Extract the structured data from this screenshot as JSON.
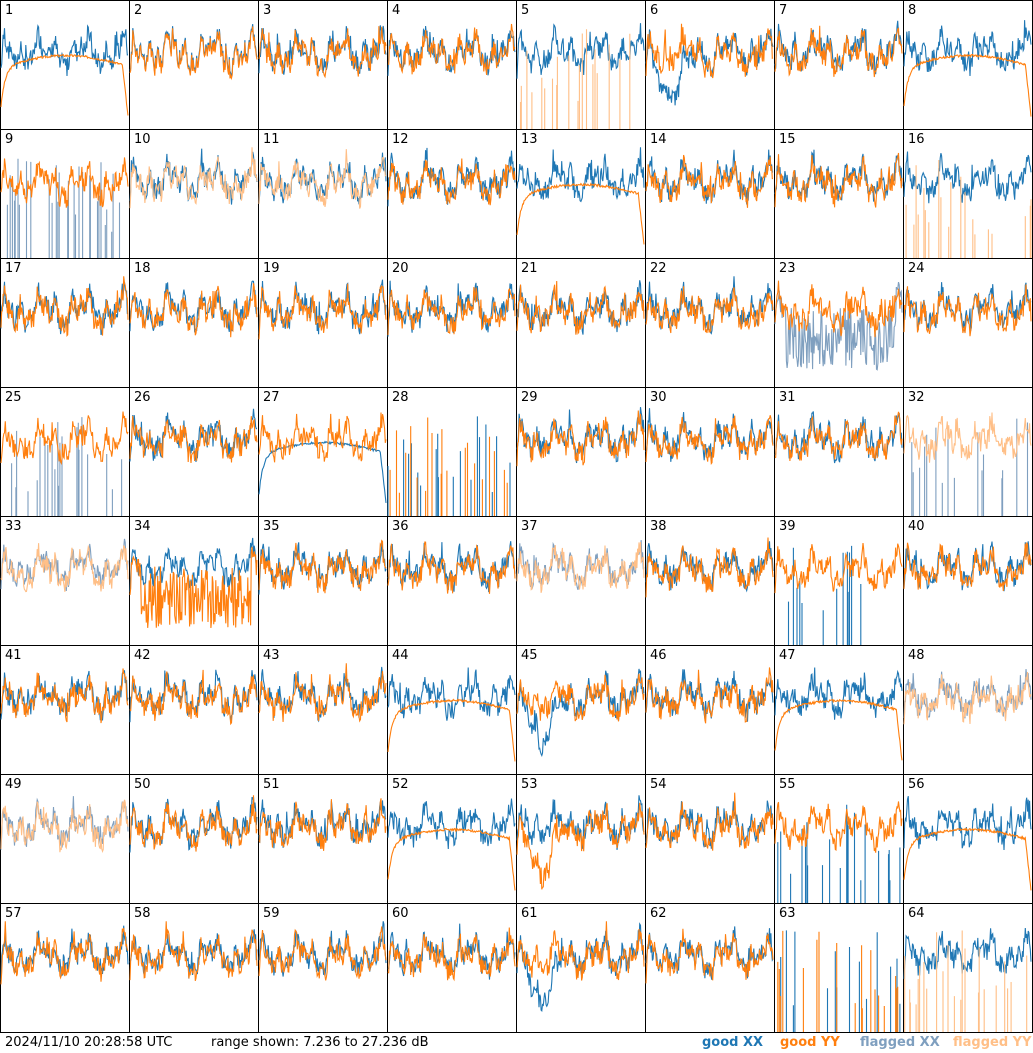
{
  "colors": {
    "good_xx": "#1f77b4",
    "good_yy": "#ff7f0e",
    "flagged_xx": "#7f9fbf",
    "flagged_yy": "#ffbf87"
  },
  "footer": {
    "timestamp": "2024/11/10 20:28:58 UTC",
    "range_text": "range shown: 7.236 to 27.236 dB"
  },
  "legend": {
    "good_xx": "good XX",
    "good_yy": "good YY",
    "flagged_xx": "flagged XX",
    "flagged_yy": "flagged YY"
  },
  "chart_data": {
    "type": "line",
    "ylim": [
      7.236,
      27.236
    ],
    "yunit": "dB",
    "grid": "8x8 small multiples",
    "panels": [
      {
        "label": "1",
        "xx": "good",
        "yy": "good",
        "yy_shape": "smooth"
      },
      {
        "label": "2",
        "xx": "good",
        "yy": "good"
      },
      {
        "label": "3",
        "xx": "good",
        "yy": "good"
      },
      {
        "label": "4",
        "xx": "good",
        "yy": "good"
      },
      {
        "label": "5",
        "xx": "good",
        "yy": "flagged",
        "yy_shape": "spikes"
      },
      {
        "label": "6",
        "xx": "good",
        "yy": "good",
        "xx_shape": "dip"
      },
      {
        "label": "7",
        "xx": "good",
        "yy": "good"
      },
      {
        "label": "8",
        "xx": "good",
        "yy": "good",
        "yy_shape": "smooth"
      },
      {
        "label": "9",
        "xx": "flagged",
        "yy": "good",
        "xx_shape": "spikes"
      },
      {
        "label": "10",
        "xx": "good",
        "yy": "flagged"
      },
      {
        "label": "11",
        "xx": "good",
        "yy": "flagged"
      },
      {
        "label": "12",
        "xx": "good",
        "yy": "good"
      },
      {
        "label": "13",
        "xx": "good",
        "yy": "good",
        "yy_shape": "smooth"
      },
      {
        "label": "14",
        "xx": "good",
        "yy": "good"
      },
      {
        "label": "15",
        "xx": "good",
        "yy": "good"
      },
      {
        "label": "16",
        "xx": "good",
        "yy": "flagged",
        "yy_shape": "spikes"
      },
      {
        "label": "17",
        "xx": "good",
        "yy": "good"
      },
      {
        "label": "18",
        "xx": "good",
        "yy": "good"
      },
      {
        "label": "19",
        "xx": "good",
        "yy": "good"
      },
      {
        "label": "20",
        "xx": "good",
        "yy": "good"
      },
      {
        "label": "21",
        "xx": "good",
        "yy": "good"
      },
      {
        "label": "22",
        "xx": "good",
        "yy": "good"
      },
      {
        "label": "23",
        "xx": "flagged",
        "yy": "good",
        "xx_shape": "block"
      },
      {
        "label": "24",
        "xx": "good",
        "yy": "good"
      },
      {
        "label": "25",
        "xx": "flagged",
        "yy": "good",
        "xx_shape": "spikes"
      },
      {
        "label": "26",
        "xx": "good",
        "yy": "good"
      },
      {
        "label": "27",
        "xx": "good",
        "yy": "good",
        "xx_shape": "smooth"
      },
      {
        "label": "28",
        "xx": "good",
        "yy": "good",
        "xx_shape": "spikes",
        "yy_shape": "spikes"
      },
      {
        "label": "29",
        "xx": "good",
        "yy": "good"
      },
      {
        "label": "30",
        "xx": "good",
        "yy": "good"
      },
      {
        "label": "31",
        "xx": "good",
        "yy": "good"
      },
      {
        "label": "32",
        "xx": "flagged",
        "yy": "flagged",
        "xx_shape": "spikes"
      },
      {
        "label": "33",
        "xx": "flagged",
        "yy": "flagged"
      },
      {
        "label": "34",
        "xx": "good",
        "yy": "good",
        "yy_shape": "block"
      },
      {
        "label": "35",
        "xx": "good",
        "yy": "good"
      },
      {
        "label": "36",
        "xx": "good",
        "yy": "good"
      },
      {
        "label": "37",
        "xx": "flagged",
        "yy": "flagged"
      },
      {
        "label": "38",
        "xx": "good",
        "yy": "good"
      },
      {
        "label": "39",
        "xx": "good",
        "yy": "good",
        "xx_shape": "spikes"
      },
      {
        "label": "40",
        "xx": "good",
        "yy": "good"
      },
      {
        "label": "41",
        "xx": "good",
        "yy": "good"
      },
      {
        "label": "42",
        "xx": "good",
        "yy": "good"
      },
      {
        "label": "43",
        "xx": "good",
        "yy": "good"
      },
      {
        "label": "44",
        "xx": "good",
        "yy": "good",
        "yy_shape": "smooth"
      },
      {
        "label": "45",
        "xx": "good",
        "yy": "good",
        "xx_shape": "dip"
      },
      {
        "label": "46",
        "xx": "good",
        "yy": "good"
      },
      {
        "label": "47",
        "xx": "good",
        "yy": "good",
        "yy_shape": "smooth"
      },
      {
        "label": "48",
        "xx": "flagged",
        "yy": "flagged"
      },
      {
        "label": "49",
        "xx": "flagged",
        "yy": "flagged"
      },
      {
        "label": "50",
        "xx": "good",
        "yy": "good"
      },
      {
        "label": "51",
        "xx": "good",
        "yy": "good"
      },
      {
        "label": "52",
        "xx": "good",
        "yy": "good",
        "yy_shape": "smooth"
      },
      {
        "label": "53",
        "xx": "good",
        "yy": "good",
        "yy_shape": "dip"
      },
      {
        "label": "54",
        "xx": "good",
        "yy": "good"
      },
      {
        "label": "55",
        "xx": "good",
        "yy": "good",
        "xx_shape": "spikes"
      },
      {
        "label": "56",
        "xx": "good",
        "yy": "good",
        "yy_shape": "smooth"
      },
      {
        "label": "57",
        "xx": "good",
        "yy": "good"
      },
      {
        "label": "58",
        "xx": "good",
        "yy": "good"
      },
      {
        "label": "59",
        "xx": "good",
        "yy": "good"
      },
      {
        "label": "60",
        "xx": "good",
        "yy": "good"
      },
      {
        "label": "61",
        "xx": "good",
        "yy": "good",
        "xx_shape": "dip"
      },
      {
        "label": "62",
        "xx": "good",
        "yy": "good"
      },
      {
        "label": "63",
        "xx": "good",
        "yy": "good",
        "xx_shape": "spikes",
        "yy_shape": "spikes"
      },
      {
        "label": "64",
        "xx": "good",
        "yy": "flagged",
        "yy_shape": "spikes"
      }
    ]
  }
}
